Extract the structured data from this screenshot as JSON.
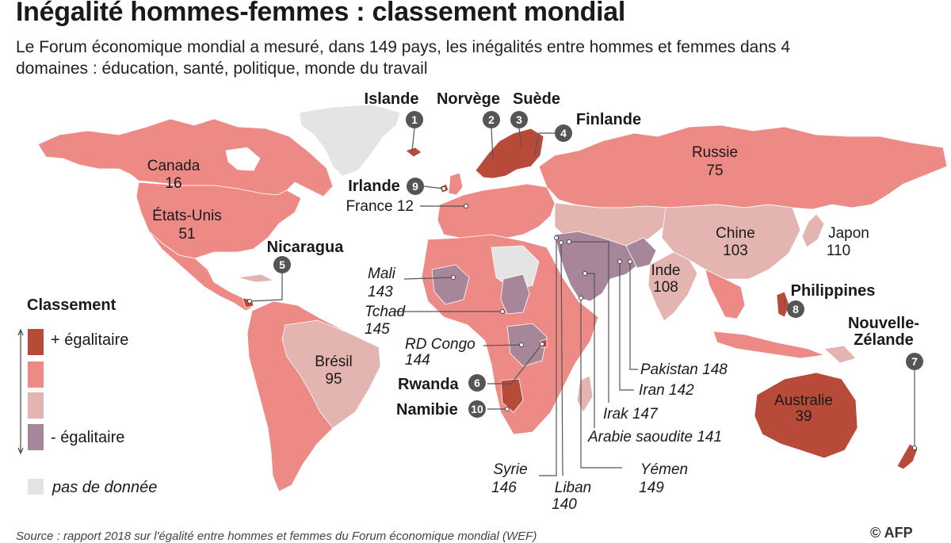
{
  "title": "Inégalité hommes-femmes : classement mondial",
  "subtitle": "Le Forum économique mondial a mesuré, dans 149 pays, les inégalités entre hommes et femmes dans 4 domaines : éducation, santé, politique, monde du travail",
  "source": "Source : rapport 2018 sur l'égalité entre hommes et femmes du Forum économique mondial (WEF)",
  "credit": "© AFP",
  "colors": {
    "most_equal": "#b84a3a",
    "equal": "#ee8a85",
    "less_equal": "#e3b4b0",
    "least_equal": "#a8869a",
    "no_data": "#e4e4e4"
  },
  "legend": {
    "title": "Classement",
    "items": [
      {
        "label": "+ égalitaire",
        "color_key": "most_equal"
      },
      {
        "label": "",
        "color_key": "equal"
      },
      {
        "label": "",
        "color_key": "less_equal"
      },
      {
        "label": "- égalitaire",
        "color_key": "least_equal"
      }
    ],
    "no_data": "pas de donnée"
  },
  "countries": {
    "islande": {
      "name": "Islande",
      "rank": "1"
    },
    "norvege": {
      "name": "Norvège",
      "rank": "2"
    },
    "suede": {
      "name": "Suède",
      "rank": "3"
    },
    "finlande": {
      "name": "Finlande",
      "rank": "4"
    },
    "nicaragua": {
      "name": "Nicaragua",
      "rank": "5"
    },
    "rwanda": {
      "name": "Rwanda",
      "rank": "6"
    },
    "nouvelle_zelande": {
      "name_line1": "Nouvelle-",
      "name_line2": "Zélande",
      "rank": "7"
    },
    "philippines": {
      "name": "Philippines",
      "rank": "8"
    },
    "irlande": {
      "name": "Irlande",
      "rank": "9"
    },
    "namibie": {
      "name": "Namibie",
      "rank": "10"
    },
    "canada": {
      "name": "Canada",
      "rank": "16"
    },
    "etats_unis": {
      "name": "États-Unis",
      "rank": "51"
    },
    "russie": {
      "name": "Russie",
      "rank": "75"
    },
    "france": {
      "name": "France",
      "rank": "12"
    },
    "chine": {
      "name": "Chine",
      "rank": "103"
    },
    "japon": {
      "name": "Japon",
      "rank": "110"
    },
    "inde": {
      "name": "Inde",
      "rank": "108"
    },
    "bresil": {
      "name": "Brésil",
      "rank": "95"
    },
    "australie": {
      "name": "Australie",
      "rank": "39"
    },
    "mali": {
      "name": "Mali",
      "rank": "143"
    },
    "tchad": {
      "name": "Tchad",
      "rank": "145"
    },
    "rd_congo": {
      "name": "RD Congo",
      "rank": "144"
    },
    "syrie": {
      "name": "Syrie",
      "rank": "146"
    },
    "liban": {
      "name": "Liban",
      "rank": "140"
    },
    "yemen": {
      "name": "Yémen",
      "rank": "149"
    },
    "arabie_saoudite": {
      "name": "Arabie saoudite",
      "rank": "141"
    },
    "irak": {
      "name": "Irak",
      "rank": "147"
    },
    "iran": {
      "name": "Iran",
      "rank": "142"
    },
    "pakistan": {
      "name": "Pakistan",
      "rank": "148"
    }
  }
}
